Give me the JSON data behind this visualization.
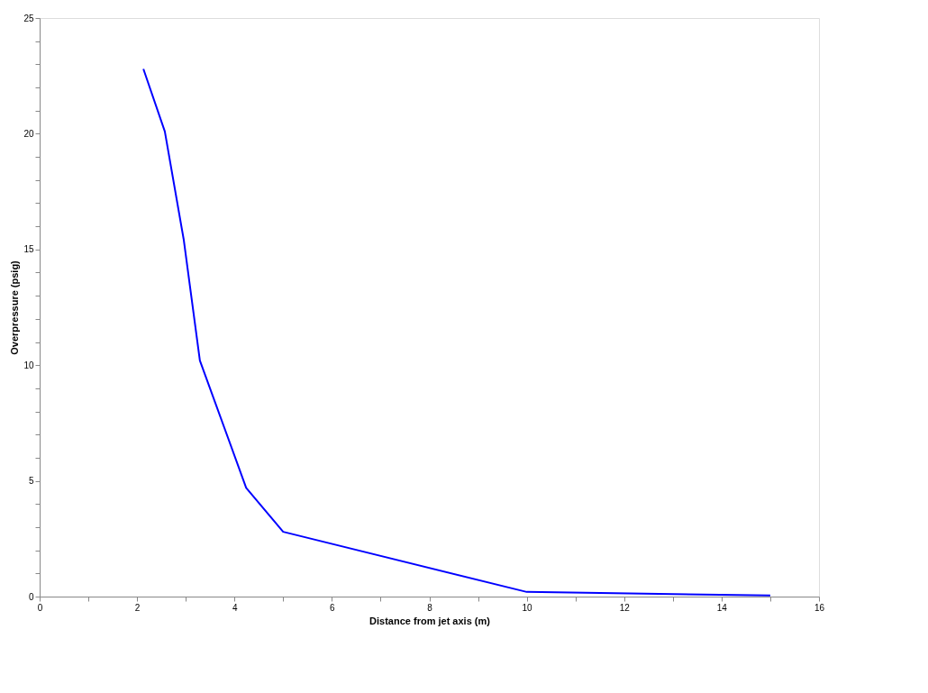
{
  "chart_data": {
    "type": "line",
    "xlabel": "Distance from jet axis (m)",
    "ylabel": "Overpressure (psig)",
    "x": [
      2.13,
      2.57,
      2.96,
      3.29,
      4.24,
      5,
      10,
      15
    ],
    "series": [
      {
        "color": "#0000ff",
        "values": [
          22.8,
          20.1,
          15.4,
          10.2,
          4.7,
          2.8,
          0.2,
          0.05
        ]
      }
    ],
    "xlim": [
      0,
      16
    ],
    "xticks": [
      0,
      {
        "value": 1,
        "label": null
      },
      2,
      {
        "value": 3,
        "label": null
      },
      4,
      {
        "value": 5,
        "label": null
      },
      6,
      {
        "value": 7,
        "label": null
      },
      8,
      {
        "value": 9,
        "label": null
      },
      10,
      {
        "value": 11,
        "label": null
      },
      12,
      {
        "value": 13,
        "label": null
      },
      14,
      {
        "value": 15,
        "label": null
      },
      16
    ],
    "ylim": [
      0,
      25
    ],
    "yticks": [
      0,
      {
        "value": 1,
        "label": null
      },
      {
        "value": 2,
        "label": null
      },
      {
        "value": 3,
        "label": null
      },
      {
        "value": 4,
        "label": null
      },
      5,
      {
        "value": 6,
        "label": null
      },
      {
        "value": 7,
        "label": null
      },
      {
        "value": 8,
        "label": null
      },
      {
        "value": 9,
        "label": null
      },
      10,
      {
        "value": 11,
        "label": null
      },
      {
        "value": 12,
        "label": null
      },
      {
        "value": 13,
        "label": null
      },
      {
        "value": 14,
        "label": null
      },
      15,
      {
        "value": 16,
        "label": null
      },
      {
        "value": 17,
        "label": null
      },
      {
        "value": 18,
        "label": null
      },
      {
        "value": 19,
        "label": null
      },
      20,
      {
        "value": 21,
        "label": null
      },
      {
        "value": 22,
        "label": null
      },
      {
        "value": 23,
        "label": null
      },
      {
        "value": 24,
        "label": null
      },
      25
    ],
    "grid": false,
    "marker": "none",
    "line_style": "solid"
  }
}
